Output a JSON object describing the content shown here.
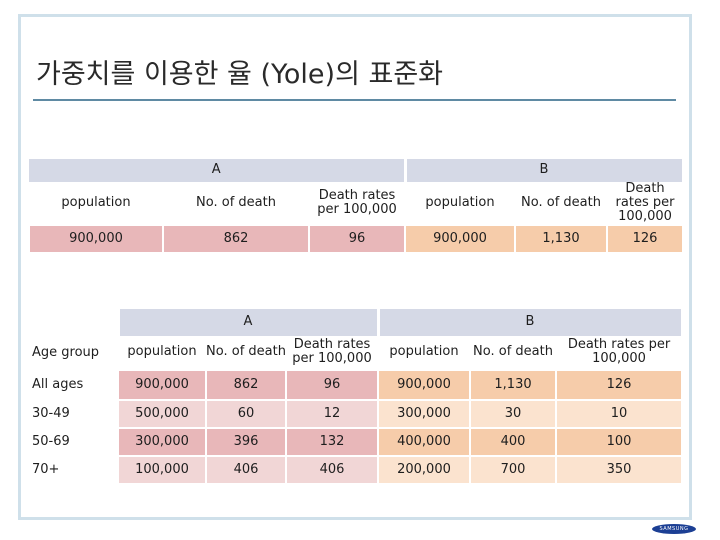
{
  "title": "가중치를 이용한 율 (Yole)의 표준화",
  "table1": {
    "group_a": "A",
    "group_b": "B",
    "columns": [
      "population",
      "No. of death",
      "Death rates per 100,000",
      "population",
      "No. of death",
      "Death rates per 100,000"
    ],
    "row": [
      "900,000",
      "862",
      "96",
      "900,000",
      "1,130",
      "126"
    ]
  },
  "table2": {
    "group_a": "A",
    "group_b": "B",
    "columns": [
      "Age group",
      "population",
      "No. of death",
      "Death rates per 100,000",
      "population",
      "No. of death",
      "Death rates per 100,000"
    ],
    "rows": [
      [
        "All ages",
        "900,000",
        "862",
        "96",
        "900,000",
        "1,130",
        "126"
      ],
      [
        "30-49",
        "500,000",
        "60",
        "12",
        "300,000",
        "30",
        "10"
      ],
      [
        "50-69",
        "300,000",
        "396",
        "132",
        "400,000",
        "400",
        "100"
      ],
      [
        "70+",
        "100,000",
        "406",
        "406",
        "200,000",
        "700",
        "350"
      ]
    ]
  },
  "logo_text": "SAMSUNG",
  "colors": {
    "header_band": "#d5d9e6",
    "pink": "#e8b7b9",
    "peach": "#f6ccaa",
    "title_rule": "#5f8aa3"
  }
}
